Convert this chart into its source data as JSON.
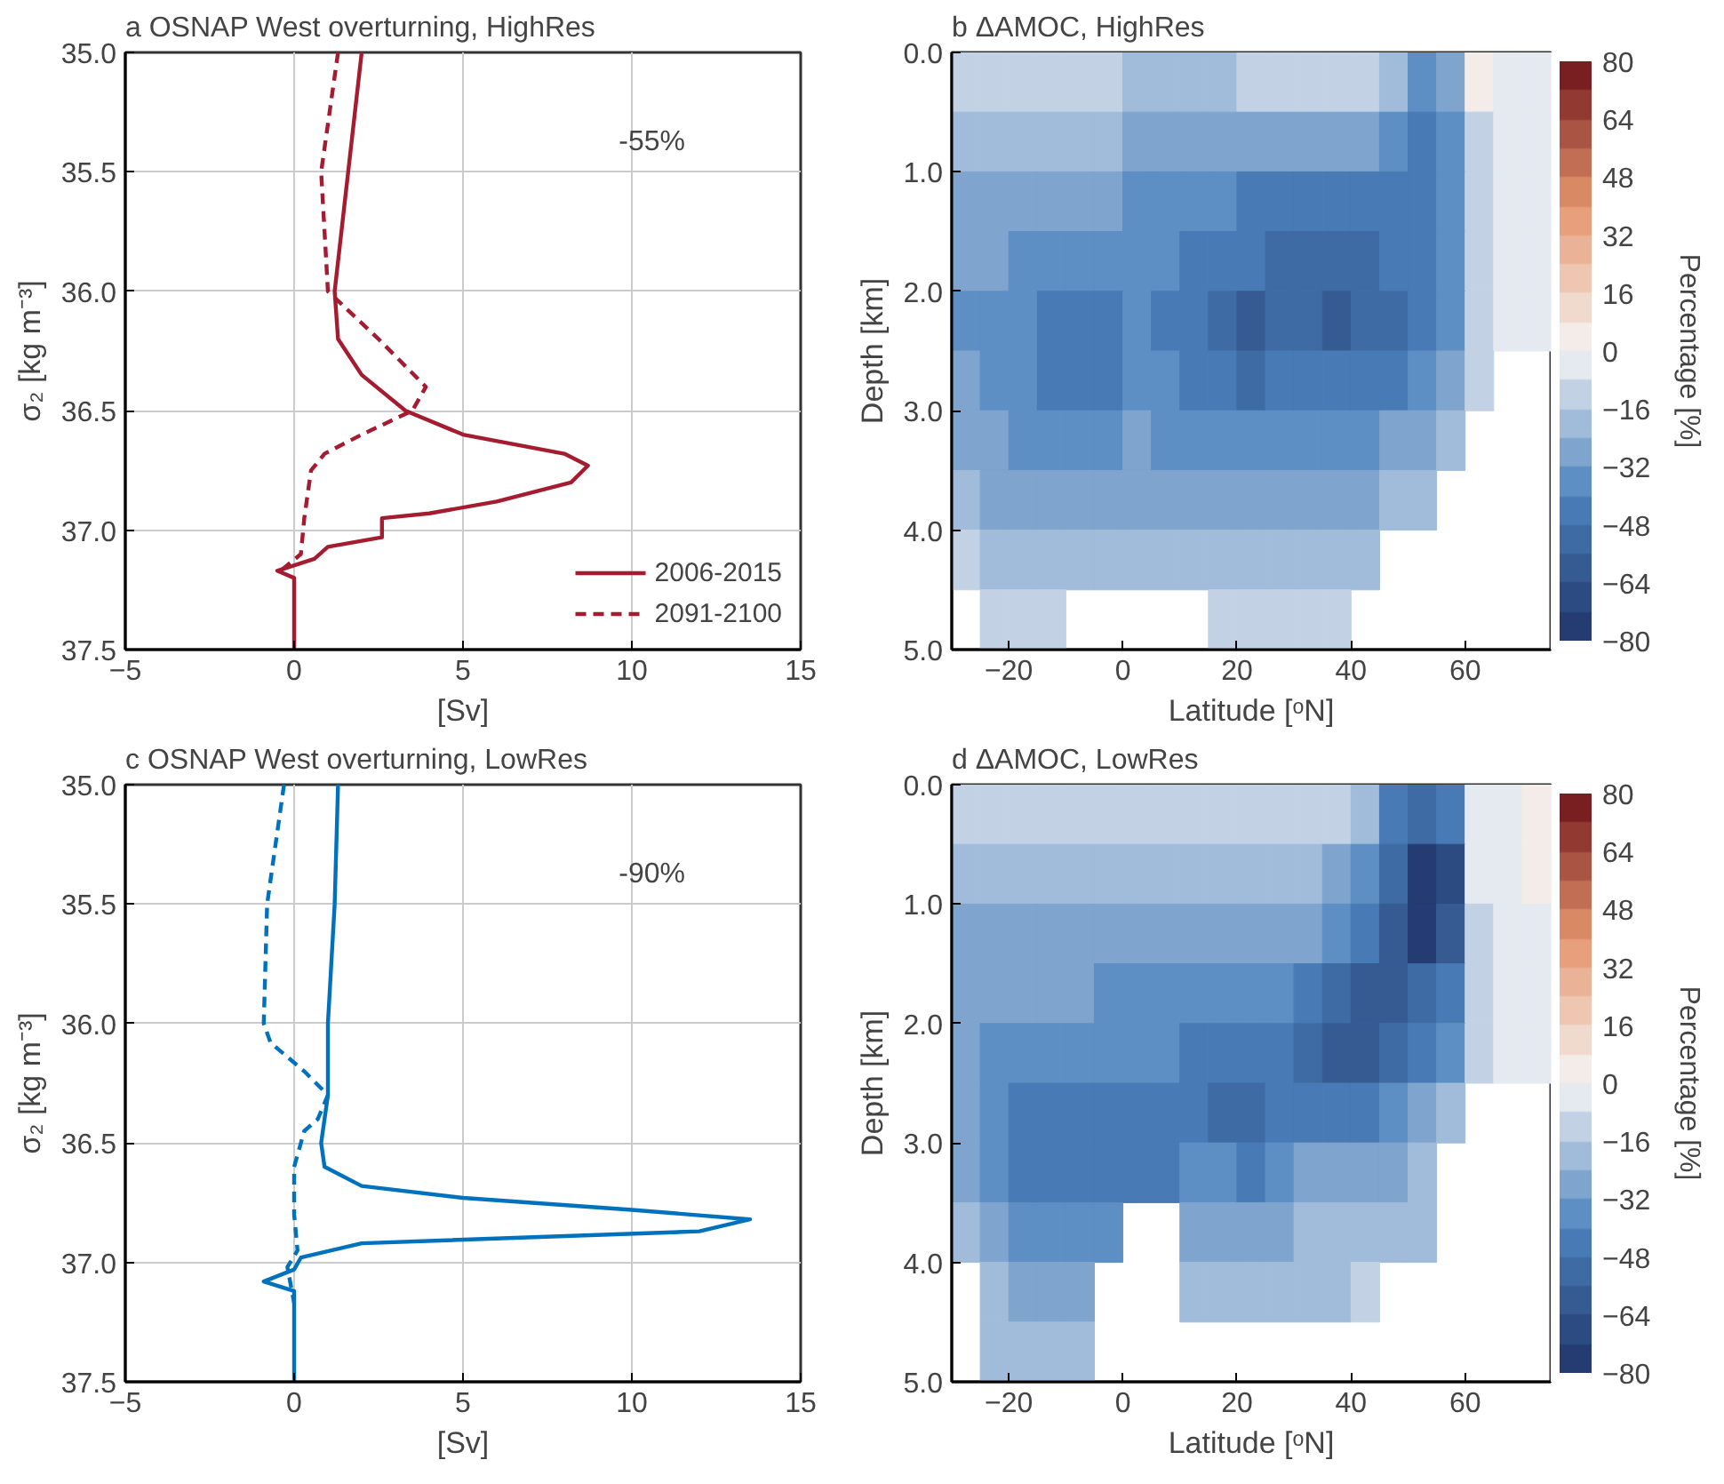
{
  "chart_data": [
    {
      "type": "line",
      "title": "a OSNAP West overturning, HighRes",
      "xlabel": "[Sv]",
      "ylabel": "σ₂ [kg m⁻³]",
      "xlim": [
        -5,
        15
      ],
      "xticks": [
        -5,
        0,
        5,
        10,
        15
      ],
      "ylim": [
        37.5,
        35.0
      ],
      "yticks": [
        {
          "value": 35.0,
          "label": "35.0"
        },
        35.5,
        {
          "value": 36.0,
          "label": "36.0"
        },
        36.5,
        {
          "value": 37.0,
          "label": "37.0"
        },
        37.5
      ],
      "grid": true,
      "legend": "bottom right",
      "annotations": [
        "-55%"
      ],
      "series": [
        {
          "name": "2006-2015",
          "color": "#a51c30",
          "line_style": "solid",
          "x": [
            2.0,
            1.2,
            1.3,
            2.0,
            3.3,
            5.0,
            8.0,
            8.7,
            8.2,
            6.0,
            4.0,
            2.6,
            2.6,
            1.0,
            0.6,
            -0.5,
            0.0,
            0.0
          ],
          "values": [
            35.0,
            36.0,
            36.2,
            36.35,
            36.5,
            36.6,
            36.68,
            36.73,
            36.8,
            36.88,
            36.93,
            36.95,
            37.03,
            37.07,
            37.12,
            37.17,
            37.2,
            37.5
          ]
        },
        {
          "name": "2091-2100",
          "color": "#a51c30",
          "line_style": "dashed",
          "x": [
            1.3,
            0.8,
            1.0,
            2.5,
            3.9,
            3.5,
            2.0,
            0.9,
            0.5,
            0.3,
            0.2,
            -0.4
          ],
          "values": [
            35.0,
            35.5,
            36.0,
            36.2,
            36.4,
            36.5,
            36.6,
            36.68,
            36.75,
            36.95,
            37.1,
            37.17
          ]
        }
      ]
    },
    {
      "type": "heatmap",
      "title": "b ΔAMOC, HighRes",
      "xlabel": "Latitude [ᵒN]",
      "ylabel": "Depth [km]",
      "clabel": "Percentage [%]",
      "xlim": [
        -30,
        75
      ],
      "xticks": [
        -20,
        0,
        20,
        40,
        60
      ],
      "ylim": [
        5.0,
        0.0
      ],
      "yticks": [
        {
          "value": 0,
          "label": "0.0"
        },
        {
          "value": 1,
          "label": "1.0"
        },
        {
          "value": 2,
          "label": "2.0"
        },
        {
          "value": 3,
          "label": "3.0"
        },
        {
          "value": 4,
          "label": "4.0"
        },
        {
          "value": 5,
          "label": "5.0"
        }
      ],
      "clim": [
        -80,
        80
      ],
      "cticks": [
        -80,
        -64,
        -48,
        -32,
        -16,
        0,
        16,
        32,
        48,
        64,
        80
      ],
      "x": [
        -27.5,
        -22.5,
        -17.5,
        -12.5,
        -7.5,
        -2.5,
        2.5,
        7.5,
        12.5,
        17.5,
        22.5,
        27.5,
        32.5,
        37.5,
        42.5,
        47.5,
        52.5,
        57.5,
        62.5,
        67.5,
        72.5
      ],
      "y": [
        0.25,
        0.75,
        1.25,
        1.75,
        2.25,
        2.75,
        3.25,
        3.75,
        4.25,
        4.75
      ],
      "cells": [
        [
          -12,
          -12,
          -12,
          -12,
          -12,
          -12,
          -20,
          -20,
          -20,
          -20,
          -12,
          -12,
          -12,
          -12,
          -12,
          -20,
          -36,
          -28,
          4,
          -4,
          -4
        ],
        [
          -20,
          -20,
          -20,
          -20,
          -20,
          -20,
          -28,
          -28,
          -28,
          -28,
          -28,
          -28,
          -28,
          -28,
          -28,
          -36,
          -44,
          -36,
          -12,
          -4,
          -4
        ],
        [
          -28,
          -28,
          -28,
          -28,
          -28,
          -28,
          -36,
          -36,
          -36,
          -36,
          -44,
          -44,
          -44,
          -44,
          -44,
          -44,
          -44,
          -36,
          -12,
          -4,
          -4
        ],
        [
          -28,
          -28,
          -36,
          -36,
          -36,
          -36,
          -36,
          -36,
          -44,
          -44,
          -44,
          -52,
          -52,
          -52,
          -52,
          -44,
          -44,
          -36,
          -12,
          -4,
          -4
        ],
        [
          -36,
          -36,
          -36,
          -44,
          -44,
          -44,
          -36,
          -44,
          -44,
          -52,
          -60,
          -52,
          -52,
          -60,
          -52,
          -52,
          -44,
          -36,
          -12,
          -4,
          -4
        ],
        [
          -28,
          -36,
          -36,
          -44,
          -44,
          -44,
          -36,
          -36,
          -44,
          -44,
          -52,
          -44,
          -44,
          -44,
          -44,
          -44,
          -36,
          -28,
          -12,
          null,
          null
        ],
        [
          -28,
          -28,
          -36,
          -36,
          -36,
          -36,
          -28,
          -36,
          -36,
          -36,
          -36,
          -36,
          -36,
          -36,
          -36,
          -28,
          -28,
          -20,
          null,
          null,
          null
        ],
        [
          -20,
          -28,
          -28,
          -28,
          -28,
          -28,
          -28,
          -28,
          -28,
          -28,
          -28,
          -28,
          -28,
          -28,
          -28,
          -20,
          -20,
          null,
          null,
          null,
          null
        ],
        [
          -12,
          -20,
          -20,
          -20,
          -20,
          -20,
          -20,
          -20,
          -20,
          -20,
          -20,
          -20,
          -20,
          -20,
          -20,
          null,
          null,
          null,
          null,
          null,
          null
        ],
        [
          null,
          -12,
          -12,
          -12,
          null,
          null,
          null,
          null,
          null,
          -12,
          -12,
          -12,
          -12,
          -12,
          null,
          null,
          null,
          null,
          null,
          null,
          null
        ]
      ]
    },
    {
      "type": "line",
      "title": "c OSNAP West overturning, LowRes",
      "xlabel": "[Sv]",
      "ylabel": "σ₂ [kg m⁻³]",
      "xlim": [
        -5,
        15
      ],
      "xticks": [
        -5,
        0,
        5,
        10,
        15
      ],
      "ylim": [
        37.5,
        35.0
      ],
      "yticks": [
        {
          "value": 35.0,
          "label": "35.0"
        },
        35.5,
        {
          "value": 36.0,
          "label": "36.0"
        },
        36.5,
        {
          "value": 37.0,
          "label": "37.0"
        },
        37.5
      ],
      "grid": true,
      "annotations": [
        "-90%"
      ],
      "series": [
        {
          "color": "#0072bd",
          "line_style": "solid",
          "x": [
            1.3,
            1.2,
            1.0,
            1.0,
            0.8,
            0.9,
            2.0,
            5.0,
            10.0,
            13.5,
            12.0,
            2.0,
            0.2,
            0.0,
            -0.9,
            0.0,
            0.0
          ],
          "values": [
            35.0,
            35.5,
            36.0,
            36.3,
            36.5,
            36.6,
            36.68,
            36.73,
            36.78,
            36.82,
            36.87,
            36.92,
            36.98,
            37.03,
            37.08,
            37.12,
            37.5
          ]
        },
        {
          "color": "#0072bd",
          "line_style": "dashed",
          "x": [
            -0.3,
            -0.8,
            -0.9,
            -0.7,
            0.3,
            1.0,
            0.7,
            0.3,
            0.0,
            0.0,
            0.1,
            -0.2,
            0.0
          ],
          "values": [
            35.0,
            35.5,
            36.0,
            36.08,
            36.2,
            36.3,
            36.4,
            36.45,
            36.6,
            36.8,
            36.95,
            37.02,
            37.17
          ]
        }
      ]
    },
    {
      "type": "heatmap",
      "title": "d ΔAMOC, LowRes",
      "xlabel": "Latitude [ᵒN]",
      "ylabel": "Depth [km]",
      "clabel": "Percentage [%]",
      "xlim": [
        -30,
        75
      ],
      "xticks": [
        -20,
        0,
        20,
        40,
        60
      ],
      "ylim": [
        5.0,
        0.0
      ],
      "yticks": [
        {
          "value": 0,
          "label": "0.0"
        },
        {
          "value": 1,
          "label": "1.0"
        },
        {
          "value": 2,
          "label": "2.0"
        },
        {
          "value": 3,
          "label": "3.0"
        },
        {
          "value": 4,
          "label": "4.0"
        },
        {
          "value": 5,
          "label": "5.0"
        }
      ],
      "clim": [
        -80,
        80
      ],
      "cticks": [
        -80,
        -64,
        -48,
        -32,
        -16,
        0,
        16,
        32,
        48,
        64,
        80
      ],
      "x": [
        -27.5,
        -22.5,
        -17.5,
        -12.5,
        -7.5,
        -2.5,
        2.5,
        7.5,
        12.5,
        17.5,
        22.5,
        27.5,
        32.5,
        37.5,
        42.5,
        47.5,
        52.5,
        57.5,
        62.5,
        67.5,
        72.5
      ],
      "y": [
        0.25,
        0.75,
        1.25,
        1.75,
        2.25,
        2.75,
        3.25,
        3.75,
        4.25,
        4.75
      ],
      "cells": [
        [
          -12,
          -12,
          -12,
          -12,
          -12,
          -12,
          -12,
          -12,
          -12,
          -12,
          -12,
          -12,
          -12,
          -12,
          -20,
          -44,
          -52,
          -44,
          -4,
          -4,
          4
        ],
        [
          -20,
          -20,
          -20,
          -20,
          -20,
          -20,
          -20,
          -20,
          -20,
          -20,
          -20,
          -20,
          -20,
          -28,
          -36,
          -52,
          -76,
          -68,
          -4,
          -4,
          4
        ],
        [
          -28,
          -28,
          -28,
          -28,
          -28,
          -28,
          -28,
          -28,
          -28,
          -28,
          -28,
          -28,
          -28,
          -36,
          -44,
          -60,
          -76,
          -60,
          -12,
          -4,
          -4
        ],
        [
          -28,
          -28,
          -28,
          -28,
          -28,
          -36,
          -36,
          -36,
          -36,
          -36,
          -36,
          -36,
          -44,
          -52,
          -60,
          -60,
          -52,
          -44,
          -12,
          -4,
          -4
        ],
        [
          -28,
          -36,
          -36,
          -36,
          -36,
          -36,
          -36,
          -36,
          -44,
          -44,
          -44,
          -44,
          -52,
          -60,
          -60,
          -52,
          -44,
          -36,
          -12,
          -4,
          -4
        ],
        [
          -28,
          -36,
          -44,
          -44,
          -44,
          -44,
          -44,
          -44,
          -44,
          -52,
          -52,
          -44,
          -44,
          -44,
          -44,
          -36,
          -28,
          -20,
          null,
          null,
          null
        ],
        [
          -28,
          -36,
          -44,
          -44,
          -44,
          -44,
          -44,
          -44,
          -36,
          -36,
          -44,
          -36,
          -28,
          -28,
          -28,
          -28,
          -20,
          null,
          null,
          null,
          null
        ],
        [
          -20,
          -28,
          -36,
          -36,
          -36,
          -36,
          null,
          null,
          -28,
          -28,
          -28,
          -28,
          -20,
          -20,
          -20,
          -20,
          -20,
          null,
          null,
          null,
          null
        ],
        [
          null,
          -20,
          -28,
          -28,
          -28,
          null,
          null,
          null,
          -20,
          -20,
          -20,
          -20,
          -20,
          -20,
          -12,
          null,
          null,
          null,
          null,
          null,
          null
        ],
        [
          null,
          -20,
          -20,
          -20,
          -20,
          null,
          null,
          null,
          null,
          null,
          null,
          null,
          null,
          null,
          null,
          null,
          null,
          null,
          null,
          null,
          null
        ]
      ]
    }
  ]
}
